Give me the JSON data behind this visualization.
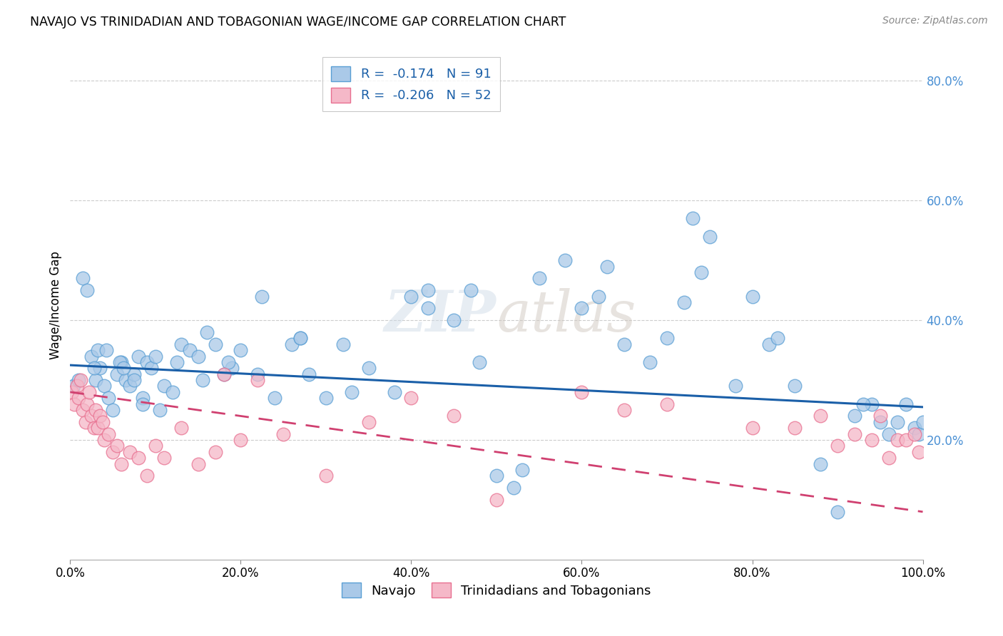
{
  "title": "NAVAJO VS TRINIDADIAN AND TOBAGONIAN WAGE/INCOME GAP CORRELATION CHART",
  "source_text": "Source: ZipAtlas.com",
  "ylabel": "Wage/Income Gap",
  "background_color": "#ffffff",
  "plot_bg_color": "#ffffff",
  "watermark": "ZIPatlas",
  "navajo_color": "#aac9e8",
  "trini_color": "#f5b8c8",
  "navajo_edge_color": "#5a9fd4",
  "trini_edge_color": "#e87090",
  "navajo_line_color": "#1a5fa8",
  "trini_line_color": "#d04070",
  "grid_color": "#cccccc",
  "ytick_color": "#4a90d4",
  "navajo_x": [
    0.4,
    1.5,
    2.0,
    2.5,
    3.0,
    3.5,
    4.0,
    4.5,
    5.0,
    5.5,
    6.0,
    6.5,
    7.0,
    7.5,
    8.0,
    8.5,
    9.0,
    9.5,
    10.0,
    11.0,
    12.0,
    13.0,
    14.0,
    15.0,
    16.0,
    17.0,
    18.0,
    19.0,
    20.0,
    22.0,
    24.0,
    26.0,
    27.0,
    28.0,
    30.0,
    32.0,
    35.0,
    38.0,
    40.0,
    42.0,
    45.0,
    47.0,
    48.0,
    50.0,
    52.0,
    55.0,
    58.0,
    60.0,
    62.0,
    65.0,
    68.0,
    70.0,
    72.0,
    74.0,
    75.0,
    78.0,
    80.0,
    82.0,
    85.0,
    88.0,
    90.0,
    92.0,
    94.0,
    95.0,
    96.0,
    97.0,
    98.0,
    99.0,
    99.5,
    100.0,
    1.0,
    2.8,
    3.2,
    4.2,
    5.8,
    6.2,
    7.5,
    8.5,
    10.5,
    12.5,
    15.5,
    18.5,
    22.5,
    27.0,
    33.0,
    42.0,
    53.0,
    63.0,
    73.0,
    83.0,
    93.0
  ],
  "navajo_y": [
    29,
    47,
    45,
    34,
    30,
    32,
    29,
    27,
    25,
    31,
    33,
    30,
    29,
    31,
    34,
    27,
    33,
    32,
    34,
    29,
    28,
    36,
    35,
    34,
    38,
    36,
    31,
    32,
    35,
    31,
    27,
    36,
    37,
    31,
    27,
    36,
    32,
    28,
    44,
    42,
    40,
    45,
    33,
    14,
    12,
    47,
    50,
    42,
    44,
    36,
    33,
    37,
    43,
    48,
    54,
    29,
    44,
    36,
    29,
    16,
    8,
    24,
    26,
    23,
    21,
    23,
    26,
    22,
    21,
    23,
    30,
    32,
    35,
    35,
    33,
    32,
    30,
    26,
    25,
    33,
    30,
    33,
    44,
    37,
    28,
    45,
    15,
    49,
    57,
    37,
    26
  ],
  "trini_x": [
    0.2,
    0.5,
    0.8,
    1.0,
    1.2,
    1.5,
    1.8,
    2.0,
    2.2,
    2.5,
    2.8,
    3.0,
    3.2,
    3.5,
    3.8,
    4.0,
    4.5,
    5.0,
    5.5,
    6.0,
    7.0,
    8.0,
    9.0,
    10.0,
    11.0,
    13.0,
    15.0,
    17.0,
    20.0,
    25.0,
    30.0,
    35.0,
    40.0,
    50.0,
    60.0,
    70.0,
    80.0,
    85.0,
    88.0,
    90.0,
    92.0,
    94.0,
    95.0,
    96.0,
    97.0,
    98.0,
    99.0,
    99.5,
    18.0,
    22.0,
    45.0,
    65.0
  ],
  "trini_y": [
    28,
    26,
    29,
    27,
    30,
    25,
    23,
    26,
    28,
    24,
    22,
    25,
    22,
    24,
    23,
    20,
    21,
    18,
    19,
    16,
    18,
    17,
    14,
    19,
    17,
    22,
    16,
    18,
    20,
    21,
    14,
    23,
    27,
    10,
    28,
    26,
    22,
    22,
    24,
    19,
    21,
    20,
    24,
    17,
    20,
    20,
    21,
    18,
    31,
    30,
    24,
    25
  ],
  "navajo_trend": [
    32.5,
    25.5
  ],
  "trini_trend": [
    28.0,
    8.0
  ],
  "xlim": [
    0,
    100
  ],
  "ylim": [
    0,
    85
  ],
  "ytick_vals": [
    20,
    40,
    60,
    80
  ],
  "ytick_labels": [
    "20.0%",
    "40.0%",
    "60.0%",
    "80.0%"
  ],
  "xtick_vals": [
    0,
    20,
    40,
    60,
    80,
    100
  ],
  "xtick_labels": [
    "0.0%",
    "20.0%",
    "40.0%",
    "60.0%",
    "80.0%",
    "100.0%"
  ]
}
